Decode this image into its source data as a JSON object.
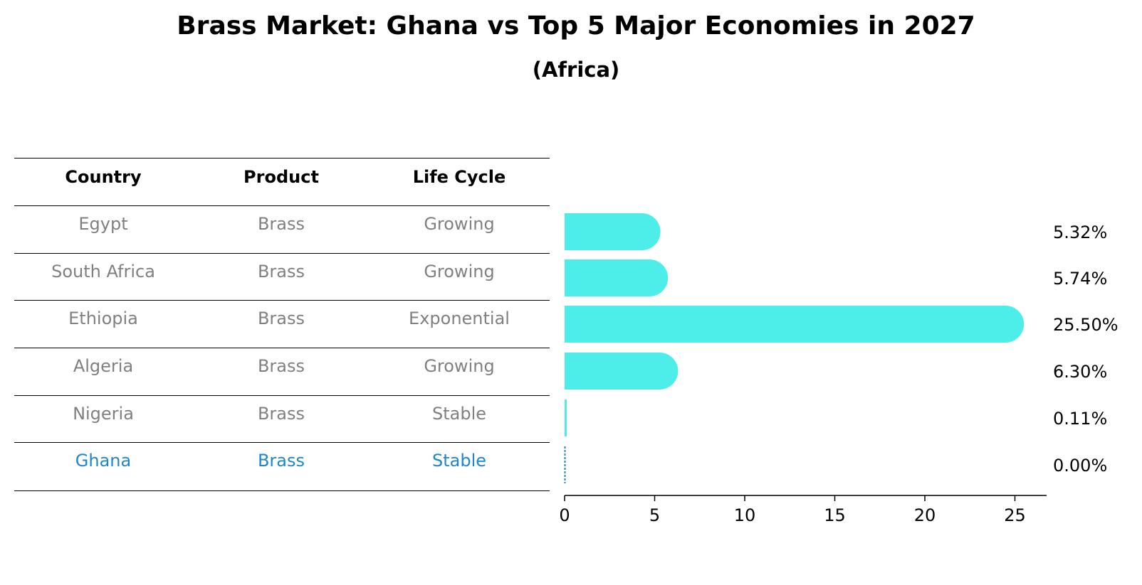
{
  "title": "Brass Market: Ghana vs Top 5 Major Economies in 2027",
  "subtitle": "(Africa)",
  "table": {
    "headers": [
      "Country",
      "Product",
      "Life Cycle"
    ],
    "rows": [
      {
        "country": "Egypt",
        "product": "Brass",
        "life_cycle": "Growing"
      },
      {
        "country": "South Africa",
        "product": "Brass",
        "life_cycle": "Growing"
      },
      {
        "country": "Ethiopia",
        "product": "Brass",
        "life_cycle": "Exponential"
      },
      {
        "country": "Algeria",
        "product": "Brass",
        "life_cycle": "Growing"
      },
      {
        "country": "Nigeria",
        "product": "Brass",
        "life_cycle": "Stable"
      },
      {
        "country": "Ghana",
        "product": "Brass",
        "life_cycle": "Stable"
      }
    ],
    "highlight_row": "Ghana"
  },
  "colors": {
    "bar": "#4deeea",
    "highlight": "#1f87c9",
    "row_text": "#808080"
  },
  "chart_data": {
    "type": "bar",
    "orientation": "horizontal",
    "categories": [
      "Egypt",
      "South Africa",
      "Ethiopia",
      "Algeria",
      "Nigeria",
      "Ghana"
    ],
    "values": [
      5.32,
      5.74,
      25.5,
      6.3,
      0.11,
      0.0
    ],
    "value_labels": [
      "5.32%",
      "5.74%",
      "25.50%",
      "6.30%",
      "0.11%",
      "0.00%"
    ],
    "xlim": [
      0,
      26.8
    ],
    "xticks": [
      0,
      5,
      10,
      15,
      20,
      25
    ],
    "xlabel": "",
    "ylabel": "",
    "grid": false
  }
}
